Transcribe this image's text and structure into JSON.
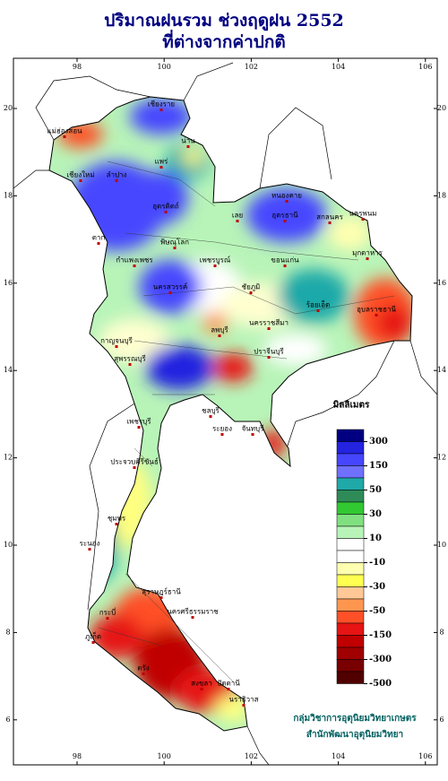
{
  "header": {
    "title": "ปริมาณฝนรวม ช่วงฤดูฝน 2552",
    "subtitle": "ที่ต่างจากค่าปกติ"
  },
  "map": {
    "lon_ticks": [
      98,
      100,
      102,
      104,
      106
    ],
    "lat_ticks": [
      20,
      18,
      16,
      14,
      12,
      10,
      8,
      6
    ],
    "provinces": [
      "เชียงราย",
      "แม่ฮ่องสอน",
      "เชียงใหม่",
      "ลำปาง",
      "น่าน",
      "แพร่",
      "ตาก",
      "อุตรดิตถ์",
      "พิษณุโลก",
      "เลย",
      "หนองคาย",
      "อุดรธานี",
      "สกลนคร",
      "นครพนม",
      "มุกดาหาร",
      "ขอนแก่น",
      "เพชรบูรณ์",
      "กำแพงเพชร",
      "นครสวรรค์",
      "ชัยภูมิ",
      "ร้อยเอ็ด",
      "อุบลราชธานี",
      "นครราชสีมา",
      "ลพบุรี",
      "สุพรรณบุรี",
      "กาญจนบุรี",
      "ปราจีนบุรี",
      "ชลบุรี",
      "ระยอง",
      "จันทบุรี",
      "เพชรบุรี",
      "ประจวบคีรีขันธ์",
      "ชุมพร",
      "ระนอง",
      "สุราษฎร์ธานี",
      "กระบี่",
      "ภูเก็ต",
      "นครศรีธรรมราช",
      "ตรัง",
      "สงขลา",
      "ปัตตานี",
      "นราธิวาส"
    ]
  },
  "legend": {
    "title": "มิลลิเมตร",
    "colors": [
      "#000080",
      "#2323e0",
      "#4646ff",
      "#7070ff",
      "#1fa9a9",
      "#2e8b57",
      "#32c832",
      "#80e080",
      "#b8f4b8",
      "#ffffff",
      "#ffffff",
      "#ffffb0",
      "#ffff50",
      "#ffc896",
      "#ff9650",
      "#ff5028",
      "#e61414",
      "#c00000",
      "#a00000",
      "#780000",
      "#500000"
    ],
    "ticks": [
      300,
      150,
      50,
      30,
      10,
      -10,
      -30,
      -50,
      -150,
      -300,
      -500
    ]
  },
  "credit": {
    "line1": "กลุ่มวิชาการอุตุนิยมวิทยาเกษตร",
    "line2": "สำนักพัฒนาอุตุนิยมวิทยา"
  }
}
